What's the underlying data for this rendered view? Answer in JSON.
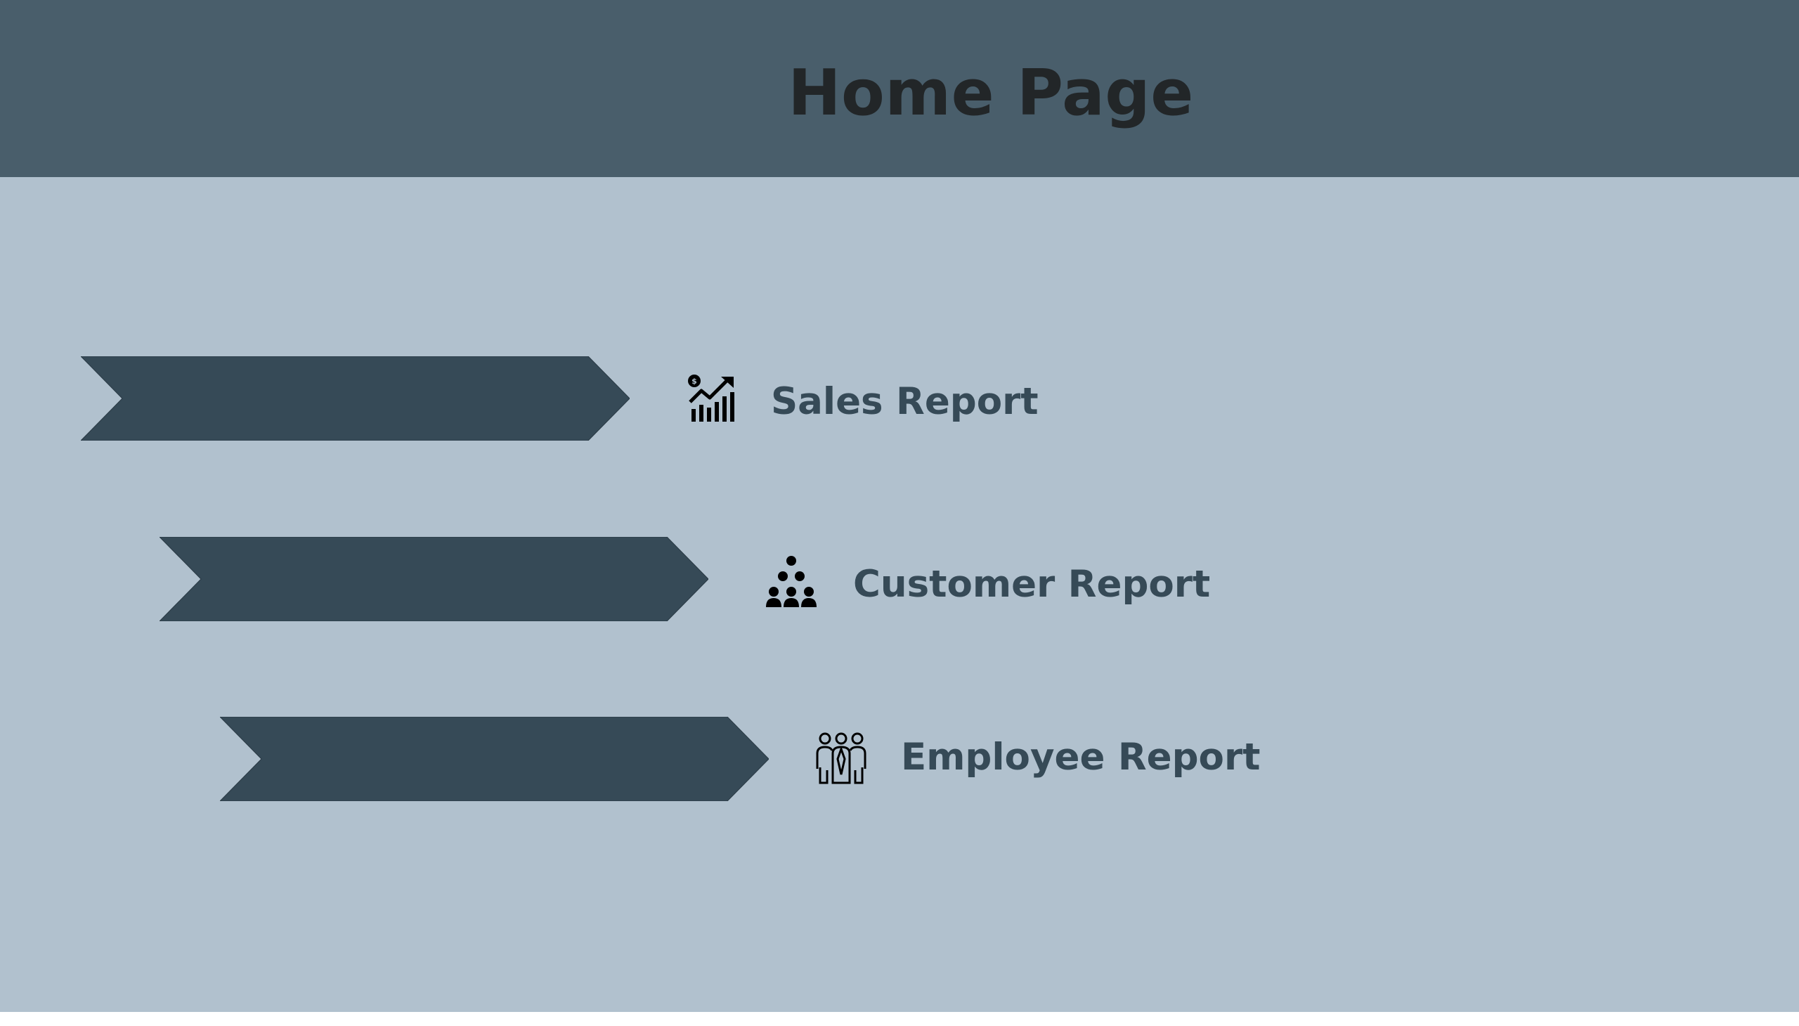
{
  "header": {
    "title": "Home Page"
  },
  "nav": [
    {
      "label": "Sales Report",
      "icon": "sales-chart-icon"
    },
    {
      "label": "Customer Report",
      "icon": "customers-group-icon"
    },
    {
      "label": "Employee Report",
      "icon": "employees-icon"
    }
  ],
  "colors": {
    "background": "#b1c1ce",
    "header": "#495e6b",
    "chevron": "#364a57",
    "title": "#222628",
    "label": "#364a57"
  }
}
